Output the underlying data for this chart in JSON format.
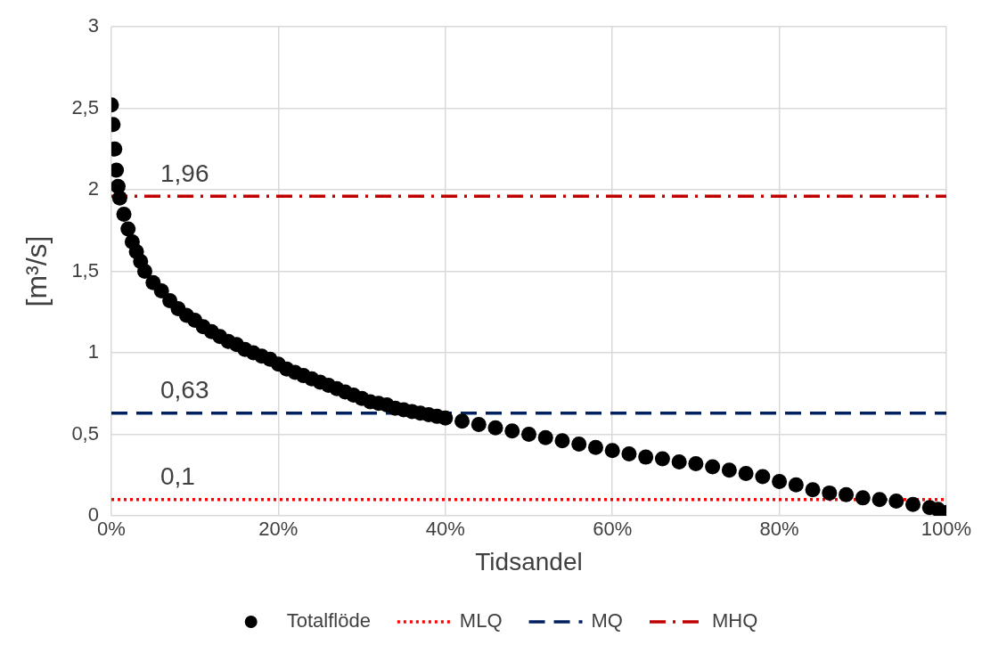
{
  "chart_data": {
    "type": "scatter",
    "xlabel": "Tidsandel",
    "ylabel": "[m³/s]",
    "xlim": [
      0,
      1
    ],
    "xticks": [
      {
        "value": 0,
        "label": "0%"
      },
      {
        "value": 0.2,
        "label": "20%"
      },
      {
        "value": 0.4,
        "label": "40%"
      },
      {
        "value": 0.6,
        "label": "60%"
      },
      {
        "value": 0.8,
        "label": "80%"
      },
      {
        "value": 1,
        "label": "100%"
      }
    ],
    "ylim": [
      0,
      3
    ],
    "yticks": [
      0,
      {
        "value": 0.5,
        "label": "0,5"
      },
      1,
      {
        "value": 1.5,
        "label": "1,5"
      },
      2,
      {
        "value": 2.5,
        "label": "2,5"
      },
      3
    ],
    "grid": true,
    "legend": "bottom",
    "series": [
      {
        "name": "Totalflöde",
        "marker": "circle",
        "color": "#000000",
        "x": [
          0,
          0.002,
          0.004,
          0.006,
          0.008,
          0.01,
          0.015,
          0.02,
          0.025,
          0.03,
          0.035,
          0.04,
          0.05,
          0.06,
          0.07,
          0.08,
          0.09,
          0.1,
          0.11,
          0.12,
          0.13,
          0.14,
          0.15,
          0.16,
          0.17,
          0.18,
          0.19,
          0.2,
          0.21,
          0.22,
          0.23,
          0.24,
          0.25,
          0.26,
          0.27,
          0.28,
          0.29,
          0.3,
          0.31,
          0.32,
          0.33,
          0.34,
          0.35,
          0.36,
          0.37,
          0.38,
          0.39,
          0.4,
          0.42,
          0.44,
          0.46,
          0.48,
          0.5,
          0.52,
          0.54,
          0.56,
          0.58,
          0.6,
          0.62,
          0.64,
          0.66,
          0.68,
          0.7,
          0.72,
          0.74,
          0.76,
          0.78,
          0.8,
          0.82,
          0.84,
          0.86,
          0.88,
          0.9,
          0.92,
          0.94,
          0.96,
          0.98,
          0.99,
          1
        ],
        "values": [
          2.52,
          2.4,
          2.25,
          2.12,
          2.02,
          1.95,
          1.85,
          1.76,
          1.68,
          1.62,
          1.56,
          1.5,
          1.43,
          1.38,
          1.32,
          1.27,
          1.23,
          1.2,
          1.16,
          1.13,
          1.1,
          1.07,
          1.05,
          1.02,
          1.0,
          0.98,
          0.96,
          0.93,
          0.9,
          0.88,
          0.86,
          0.84,
          0.82,
          0.8,
          0.78,
          0.76,
          0.74,
          0.72,
          0.7,
          0.69,
          0.68,
          0.66,
          0.65,
          0.64,
          0.63,
          0.62,
          0.61,
          0.6,
          0.58,
          0.56,
          0.54,
          0.52,
          0.5,
          0.48,
          0.46,
          0.44,
          0.42,
          0.4,
          0.38,
          0.36,
          0.35,
          0.33,
          0.32,
          0.3,
          0.28,
          0.26,
          0.24,
          0.21,
          0.19,
          0.16,
          0.14,
          0.13,
          0.11,
          0.1,
          0.09,
          0.07,
          0.05,
          0.04,
          0.02
        ]
      },
      {
        "name": "MLQ",
        "type": "line",
        "line_style": "dotted",
        "color": "#ff0000",
        "x": [
          0,
          1
        ],
        "values": [
          0.1,
          0.1
        ]
      },
      {
        "name": "MQ",
        "type": "line",
        "line_style": "dashed",
        "color": "#002060",
        "x": [
          0,
          1
        ],
        "values": [
          0.63,
          0.63
        ]
      },
      {
        "name": "MHQ",
        "type": "line",
        "line_style": "dashdot",
        "color": "#c00000",
        "x": [
          0,
          1
        ],
        "values": [
          1.96,
          1.96
        ]
      }
    ],
    "annotations": [
      {
        "text": "1,96",
        "y": 1.96
      },
      {
        "text": "0,63",
        "y": 0.63
      },
      {
        "text": "0,1",
        "y": 0.1
      }
    ]
  }
}
